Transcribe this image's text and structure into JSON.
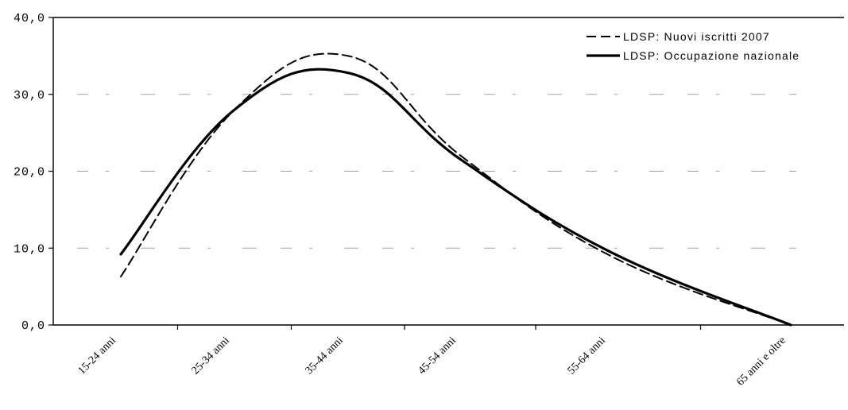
{
  "chart_data": {
    "type": "line",
    "title": "",
    "xlabel": "",
    "ylabel": "",
    "categories": [
      "15-24 anni",
      "25-34 anni",
      "35-44 anni",
      "45-54 anni",
      "55-64 anni",
      "65 anni e oltre"
    ],
    "ylim": [
      0,
      40
    ],
    "yticks": [
      "0,0",
      "10,0",
      "20,0",
      "30,0",
      "40,0"
    ],
    "grid": true,
    "legend_position": "top-right",
    "series": [
      {
        "name": "LDSP: Nuovi iscritti 2007",
        "style": "dashed",
        "values": [
          6.3,
          28.0,
          35.0,
          22.0,
          9.0,
          0.0
        ]
      },
      {
        "name": "LDSP: Occupazione nazionale",
        "style": "solid",
        "values": [
          9.2,
          28.0,
          32.8,
          21.5,
          9.5,
          0.0
        ]
      }
    ],
    "colors": {
      "line": "#000000",
      "background": "#ffffff"
    }
  }
}
